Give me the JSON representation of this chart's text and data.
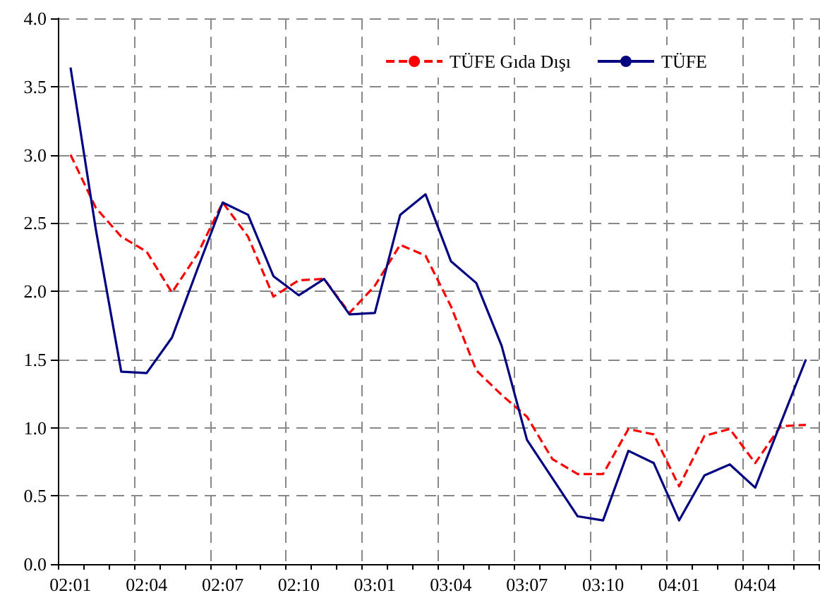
{
  "chart_data": {
    "type": "line",
    "categories": [
      "02:01",
      null,
      null,
      "02:04",
      null,
      null,
      "02:07",
      null,
      null,
      "02:10",
      null,
      null,
      "03:01",
      null,
      null,
      "03:04",
      null,
      null,
      "03:07",
      null,
      null,
      "03:10",
      null,
      null,
      "04:01",
      null,
      null,
      "04:04",
      null,
      null
    ],
    "series": [
      {
        "name": "TÜFE Gıda Dışı",
        "color": "#ff0000",
        "line_style": "dashed",
        "values": [
          3.0,
          2.61,
          2.4,
          2.29,
          1.99,
          2.27,
          2.65,
          2.4,
          1.96,
          2.08,
          2.09,
          1.84,
          2.04,
          2.34,
          2.26,
          1.89,
          1.42,
          1.24,
          1.08,
          0.77,
          0.66,
          0.66,
          0.99,
          0.95,
          0.57,
          0.94,
          0.99,
          0.74,
          1.01,
          1.02
        ]
      },
      {
        "name": "TÜFE",
        "color": "#000080",
        "line_style": "solid",
        "values": [
          3.64,
          2.45,
          1.41,
          1.4,
          1.66,
          2.16,
          2.65,
          2.56,
          2.11,
          1.97,
          2.09,
          1.83,
          1.84,
          2.56,
          2.71,
          2.22,
          2.06,
          1.6,
          0.91,
          0.63,
          0.35,
          0.32,
          0.83,
          0.74,
          0.32,
          0.65,
          0.73,
          0.56,
          1.03,
          1.5
        ]
      }
    ],
    "ylim": [
      0,
      4
    ],
    "yticks": [
      {
        "value": 0,
        "label": "0.0"
      },
      {
        "value": 0.5,
        "label": "0.5"
      },
      {
        "value": 1,
        "label": "1.0"
      },
      {
        "value": 1.5,
        "label": "1.5"
      },
      {
        "value": 2,
        "label": "2.0"
      },
      {
        "value": 2.5,
        "label": "2.5"
      },
      {
        "value": 3,
        "label": "3.0"
      },
      {
        "value": 3.5,
        "label": "3.5"
      },
      {
        "value": 4,
        "label": "4.0"
      }
    ],
    "grid": true,
    "legend": "top right",
    "marker": "none"
  }
}
